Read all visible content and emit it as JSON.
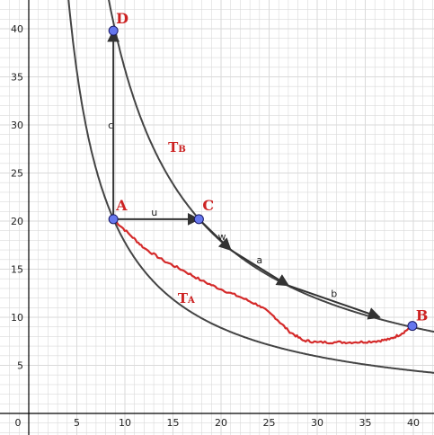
{
  "axes": {
    "x_ticks": [
      "0",
      "5",
      "10",
      "15",
      "20",
      "25",
      "30",
      "35",
      "40"
    ],
    "y_ticks": [
      "5",
      "10",
      "15",
      "20",
      "25",
      "30",
      "35",
      "40"
    ]
  },
  "points": [
    {
      "id": "A",
      "label": "A",
      "x": 8.8,
      "y": 20.2
    },
    {
      "id": "B",
      "label": "B",
      "x": 39.9,
      "y": 9.1
    },
    {
      "id": "C",
      "label": "C",
      "x": 17.7,
      "y": 20.2
    },
    {
      "id": "D",
      "label": "D",
      "x": 8.8,
      "y": 39.8
    }
  ],
  "isotherms": [
    {
      "id": "TA",
      "label_main": "T",
      "label_sub": "A",
      "constant": 178
    },
    {
      "id": "TB",
      "label_main": "T",
      "label_sub": "B",
      "constant": 358
    }
  ],
  "vectors": [
    {
      "label": "c",
      "from": [
        8.8,
        20.2
      ],
      "to": [
        8.8,
        39.8
      ]
    },
    {
      "label": "u",
      "from": [
        8.8,
        20.2
      ],
      "to": [
        17.7,
        20.2
      ]
    },
    {
      "label": "w",
      "from": [
        17.7,
        20.2
      ],
      "to": [
        21.0,
        17.0
      ]
    },
    {
      "label": "a",
      "from": [
        21.0,
        17.0
      ],
      "to": [
        27.0,
        13.3
      ]
    },
    {
      "label": "b",
      "from": [
        27.0,
        13.3
      ],
      "to": [
        36.5,
        10.0
      ]
    }
  ],
  "colors": {
    "grid": "#dadada",
    "axis": "#000000",
    "curve": "#444444",
    "path": "#d42a2a",
    "point_fill": "#6677ee",
    "label": "#cc2222"
  }
}
